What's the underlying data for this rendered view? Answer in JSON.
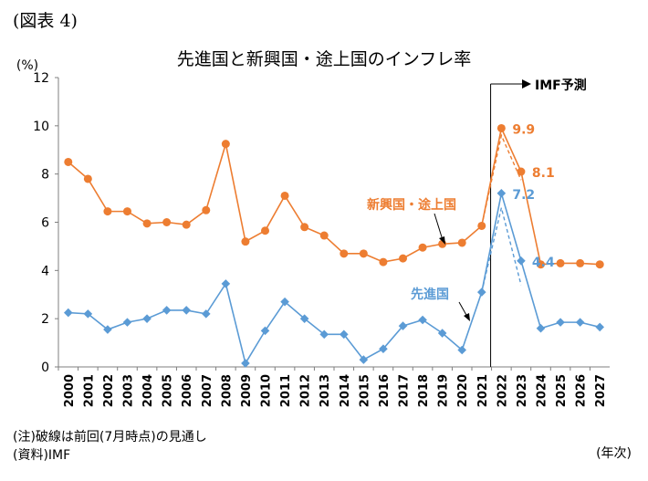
{
  "figure_label": "(図表 4)",
  "chart_data": {
    "type": "line",
    "title": "先進国と新興国・途上国のインフレ率",
    "ylabel": "(%)",
    "xlabel": "(年次)",
    "ylim": [
      0,
      12
    ],
    "yticks": [
      0,
      2,
      4,
      6,
      8,
      10,
      12
    ],
    "grid": false,
    "categories": [
      "2000",
      "2001",
      "2002",
      "2003",
      "2004",
      "2005",
      "2006",
      "2007",
      "2008",
      "2009",
      "2010",
      "2011",
      "2012",
      "2013",
      "2014",
      "2015",
      "2016",
      "2017",
      "2018",
      "2019",
      "2020",
      "2021",
      "2022",
      "2023",
      "2024",
      "2025",
      "2026",
      "2027"
    ],
    "series": [
      {
        "name": "新興国・途上国",
        "color": "#ED7D31",
        "marker": "circle",
        "values": [
          8.5,
          7.8,
          6.45,
          6.45,
          5.95,
          6.0,
          5.9,
          6.5,
          9.25,
          5.2,
          5.65,
          7.1,
          5.8,
          5.45,
          4.7,
          4.7,
          4.35,
          4.5,
          4.95,
          5.1,
          5.15,
          5.85,
          9.9,
          8.1,
          4.25,
          4.3,
          4.3,
          4.25
        ],
        "previous_forecast": {
          "x": [
            "2021",
            "2022",
            "2023"
          ],
          "values": [
            5.85,
            9.6,
            7.75
          ]
        }
      },
      {
        "name": "先進国",
        "color": "#5B9BD5",
        "marker": "diamond",
        "values": [
          2.25,
          2.2,
          1.55,
          1.85,
          2.0,
          2.35,
          2.35,
          2.2,
          3.45,
          0.15,
          1.5,
          2.7,
          2.0,
          1.35,
          1.35,
          0.3,
          0.75,
          1.7,
          1.95,
          1.4,
          0.7,
          3.1,
          7.2,
          4.4,
          1.6,
          1.85,
          1.85,
          1.65
        ],
        "previous_forecast": {
          "x": [
            "2021",
            "2022",
            "2023"
          ],
          "values": [
            3.1,
            6.6,
            3.4
          ]
        }
      }
    ],
    "data_labels": [
      {
        "series": "新興国・途上国",
        "x": "2022",
        "text": "9.9"
      },
      {
        "series": "新興国・途上国",
        "x": "2023",
        "text": "8.1"
      },
      {
        "series": "先進国",
        "x": "2022",
        "text": "7.2"
      },
      {
        "series": "先進国",
        "x": "2023",
        "text": "4.4"
      }
    ],
    "annotations": [
      {
        "text": "IMF予測",
        "from_x": "2022"
      }
    ],
    "series_labels": [
      "新興国・途上国",
      "先進国"
    ]
  },
  "notes": {
    "note1": "(注)破線は前回(7月時点)の見通し",
    "source": "(資料)IMF"
  }
}
